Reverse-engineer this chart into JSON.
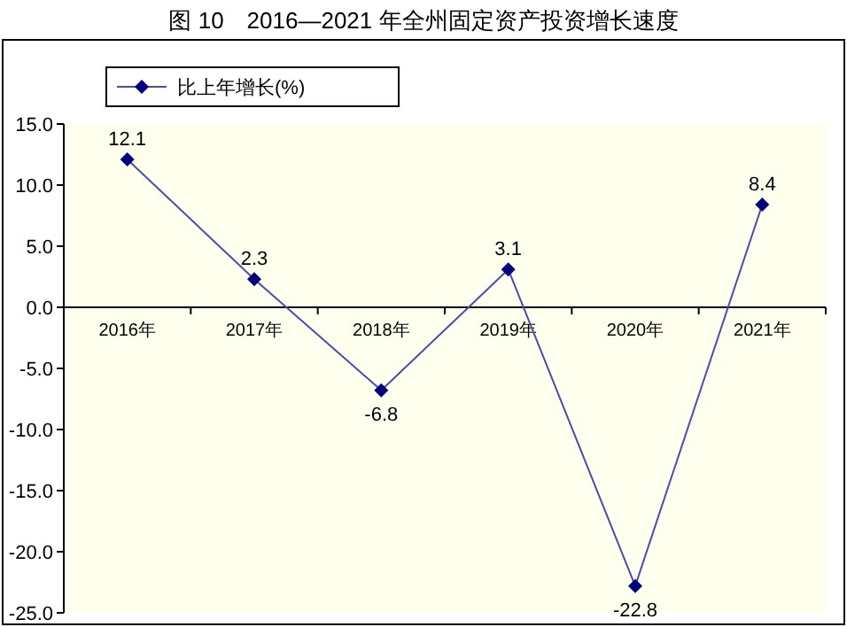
{
  "chart_data": {
    "type": "line",
    "title": "图 10　2016—2021 年全州固定资产投资增长速度",
    "categories": [
      "2016年",
      "2017年",
      "2018年",
      "2019年",
      "2020年",
      "2021年"
    ],
    "series": [
      {
        "name": "比上年增长(%)",
        "color": "#4b4bb0",
        "values": [
          12.1,
          2.3,
          -6.8,
          3.1,
          -22.8,
          8.4
        ]
      }
    ],
    "ylim": [
      -25,
      15
    ],
    "yticks": [
      {
        "value": -25,
        "label": "-25.0"
      },
      {
        "value": -20,
        "label": "-20.0"
      },
      {
        "value": -15,
        "label": "-15.0"
      },
      {
        "value": -10,
        "label": "-10.0"
      },
      {
        "value": -5,
        "label": "-5.0"
      },
      {
        "value": 0,
        "label": "0.0"
      },
      {
        "value": 5,
        "label": "5.0"
      },
      {
        "value": 10,
        "label": "10.0"
      },
      {
        "value": 15,
        "label": "15.0"
      }
    ],
    "marker": "diamond",
    "line_style": "solid",
    "legend": "top left",
    "data_labels": true,
    "grid": false
  }
}
